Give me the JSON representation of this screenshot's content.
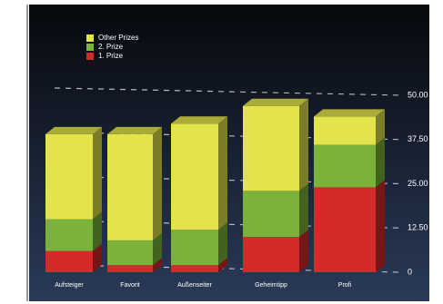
{
  "chart_data": {
    "type": "bar3d",
    "categories": [
      "Aufsteiger",
      "Favorit",
      "Außenseiter",
      "Geheimtipp",
      "Profi"
    ],
    "series": [
      {
        "name": "1. Prize",
        "color": "#d42a2a",
        "values": [
          6,
          2,
          2,
          10,
          24
        ]
      },
      {
        "name": "2. Prize",
        "color": "#7ab23a",
        "values": [
          9,
          7,
          10,
          13,
          12
        ]
      },
      {
        "name": "Other Prizes",
        "color": "#e2e44a",
        "values": [
          24,
          30,
          30,
          24,
          8
        ]
      }
    ],
    "ylim": [
      0,
      50
    ],
    "yticks": [
      {
        "value": 0,
        "label": "0"
      },
      {
        "value": 12.5,
        "label": "12.50"
      },
      {
        "value": 25,
        "label": "25.00"
      },
      {
        "value": 37.5,
        "label": "37.50"
      },
      {
        "value": 50,
        "label": "50.00"
      }
    ],
    "grid": true
  }
}
